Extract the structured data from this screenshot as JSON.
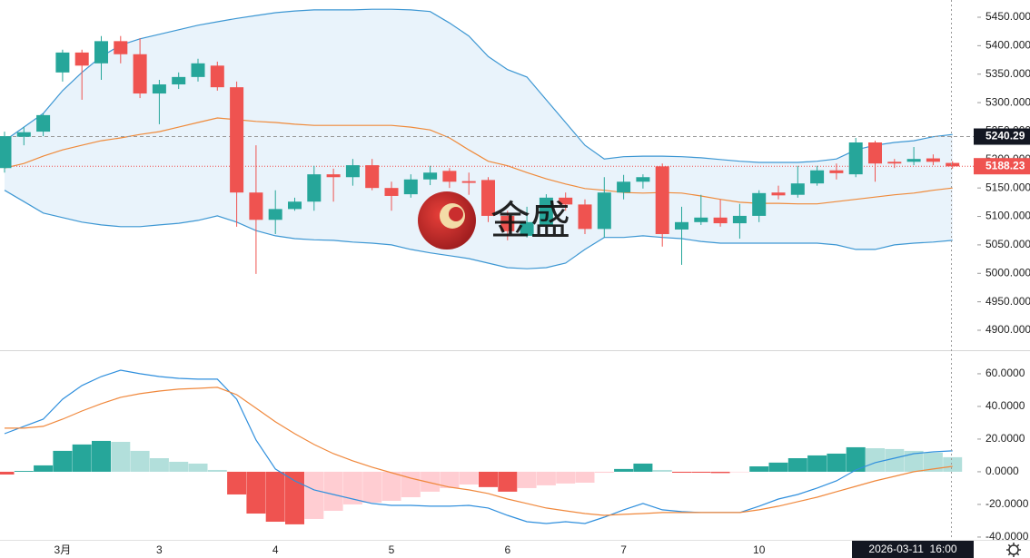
{
  "watermark": "金盛",
  "cursor_time": "2026-03-11  16:00",
  "chart_data": [
    {
      "type": "candlestick",
      "up_color": "#26a69a",
      "down_color": "#ef5350",
      "open": [
        5185,
        5240,
        5249,
        5353,
        5388,
        5369,
        5408,
        5385,
        5316,
        5332,
        5345,
        5365,
        5327,
        5142,
        5094,
        5113,
        5126,
        5174,
        5169,
        5190,
        5150,
        5139,
        5165,
        5180,
        5162,
        5164,
        5101,
        5066,
        5085,
        5133,
        5121,
        5078,
        5142,
        5161,
        5188,
        5077,
        5090,
        5098,
        5088,
        5101,
        5142,
        5138,
        5158,
        5181,
        5174,
        5230,
        5196,
        5196,
        5202,
        5194
      ],
      "high": [
        5249,
        5257,
        5281,
        5393,
        5393,
        5417,
        5417,
        5413,
        5340,
        5353,
        5377,
        5372,
        5337,
        5225,
        5146,
        5133,
        5189,
        5184,
        5201,
        5201,
        5161,
        5174,
        5189,
        5185,
        5177,
        5169,
        5110,
        5117,
        5139,
        5142,
        5130,
        5169,
        5173,
        5174,
        5193,
        5117,
        5138,
        5130,
        5122,
        5146,
        5154,
        5189,
        5189,
        5193,
        5238,
        5233,
        5201,
        5222,
        5209,
        5197
      ],
      "low": [
        5177,
        5225,
        5241,
        5337,
        5305,
        5340,
        5369,
        5308,
        5262,
        5324,
        5337,
        5321,
        5082,
        4999,
        5069,
        5110,
        5110,
        5126,
        5154,
        5146,
        5110,
        5133,
        5155,
        5150,
        5138,
        5090,
        5058,
        5063,
        5079,
        5110,
        5069,
        5063,
        5130,
        5149,
        5047,
        5015,
        5085,
        5082,
        5061,
        5090,
        5130,
        5133,
        5154,
        5165,
        5169,
        5161,
        5185,
        5190,
        5190,
        5184
      ],
      "close": [
        5241,
        5248,
        5278,
        5388,
        5365,
        5408,
        5385,
        5316,
        5332,
        5345,
        5369,
        5327,
        5142,
        5094,
        5113,
        5126,
        5174,
        5169,
        5190,
        5150,
        5136,
        5165,
        5177,
        5161,
        5159,
        5101,
        5074,
        5090,
        5133,
        5121,
        5078,
        5142,
        5161,
        5169,
        5069,
        5090,
        5098,
        5088,
        5101,
        5141,
        5137,
        5158,
        5181,
        5176,
        5230,
        5193,
        5193,
        5201,
        5196,
        5188
      ],
      "band_fill": "#e9f3fb",
      "lines": [
        {
          "color": "#3d97d3",
          "values": [
            5233,
            5257,
            5281,
            5321,
            5353,
            5381,
            5401,
            5412,
            5420,
            5428,
            5436,
            5442,
            5448,
            5453,
            5458,
            5461,
            5463,
            5463,
            5463,
            5464,
            5464,
            5463,
            5460,
            5440,
            5417,
            5381,
            5358,
            5345,
            5305,
            5265,
            5225,
            5201,
            5205,
            5206,
            5206,
            5205,
            5203,
            5200,
            5197,
            5195,
            5195,
            5195,
            5197,
            5201,
            5217,
            5225,
            5230,
            5233,
            5240,
            5244
          ]
        },
        {
          "color": "#ef8a3a",
          "values": [
            5185,
            5193,
            5206,
            5217,
            5225,
            5233,
            5238,
            5244,
            5249,
            5257,
            5265,
            5273,
            5270,
            5267,
            5265,
            5262,
            5260,
            5260,
            5260,
            5260,
            5260,
            5257,
            5252,
            5238,
            5217,
            5197,
            5189,
            5177,
            5166,
            5157,
            5149,
            5146,
            5142,
            5141,
            5142,
            5141,
            5136,
            5130,
            5125,
            5123,
            5123,
            5122,
            5122,
            5126,
            5130,
            5134,
            5138,
            5141,
            5146,
            5150
          ]
        },
        {
          "color": "#3d97d3",
          "values": [
            5146,
            5126,
            5106,
            5098,
            5090,
            5085,
            5082,
            5082,
            5085,
            5088,
            5093,
            5101,
            5090,
            5075,
            5066,
            5061,
            5059,
            5058,
            5055,
            5053,
            5050,
            5042,
            5036,
            5031,
            5026,
            5018,
            5010,
            5008,
            5010,
            5018,
            5042,
            5063,
            5063,
            5066,
            5063,
            5061,
            5056,
            5053,
            5053,
            5053,
            5053,
            5053,
            5053,
            5050,
            5042,
            5042,
            5050,
            5053,
            5055,
            5058
          ]
        }
      ],
      "price_markers": [
        {
          "value": 5240.29,
          "color": "#131722",
          "line_color": "#9a9a9a"
        },
        {
          "value": 5188.23,
          "color": "#ef5350",
          "line_color": "#ef5350"
        }
      ],
      "ylim": [
        4866.5,
        5480.3
      ],
      "yticks": [
        {
          "value": 5450,
          "label": "5450.000"
        },
        {
          "value": 5400,
          "label": "5400.000"
        },
        {
          "value": 5350,
          "label": "5350.000"
        },
        {
          "value": 5300,
          "label": "5300.000"
        },
        {
          "value": 5250,
          "label": "5250.000"
        },
        {
          "value": 5200,
          "label": "5200.000"
        },
        {
          "value": 5150,
          "label": "5150.000"
        },
        {
          "value": 5100,
          "label": "5100.000"
        },
        {
          "value": 5050,
          "label": "5050.000"
        },
        {
          "value": 5000,
          "label": "5000.000"
        },
        {
          "value": 4950,
          "label": "4950.000"
        },
        {
          "value": 4900,
          "label": "4900.000"
        }
      ]
    },
    {
      "type": "macd",
      "categories": [
        null,
        null,
        null,
        "3月",
        null,
        null,
        null,
        null,
        "3",
        null,
        null,
        null,
        null,
        null,
        "4",
        null,
        null,
        null,
        null,
        null,
        "5",
        null,
        null,
        null,
        null,
        null,
        "6",
        null,
        null,
        null,
        null,
        null,
        "7",
        null,
        null,
        null,
        null,
        null,
        null,
        "10",
        null,
        null,
        null,
        null,
        null,
        null,
        null,
        null,
        null,
        null
      ],
      "histogram": [
        -1.7,
        0.5,
        3.9,
        12.8,
        16.7,
        18.9,
        18.3,
        12.8,
        8.3,
        6.1,
        5,
        1.1,
        -13.9,
        -25.6,
        -30.6,
        -32.2,
        -28.9,
        -23.9,
        -20,
        -18.9,
        -17.8,
        -15.6,
        -12.2,
        -10,
        -7.8,
        -9.4,
        -12.2,
        -10,
        -8.3,
        -7.2,
        -6.7,
        -0.6,
        1.7,
        5,
        1.1,
        -0.6,
        -0.6,
        -0.8,
        -0.3,
        3.3,
        5.6,
        8.3,
        10,
        11.1,
        15,
        14.4,
        13.9,
        12.8,
        11.7,
        8.9
      ],
      "palette": {
        "pos_up": "#26a69a",
        "pos_down": "#b2dfdb",
        "neg_down": "#ef5350",
        "neg_up": "#ffcdd2"
      },
      "lines": [
        {
          "color": "#2f8fdd",
          "values": [
            23.3,
            27.8,
            32.2,
            44.4,
            52.8,
            58.3,
            62.2,
            60,
            58.3,
            57.2,
            56.7,
            56.7,
            44.4,
            19.4,
            1.7,
            -5.6,
            -11.1,
            -13.9,
            -16.7,
            -19.4,
            -20.6,
            -20.6,
            -21.1,
            -21.1,
            -20.6,
            -22.2,
            -26.7,
            -30.6,
            -31.7,
            -30.6,
            -31.7,
            -27.8,
            -23.3,
            -19.4,
            -23.3,
            -24.4,
            -25,
            -25,
            -25,
            -21.1,
            -16.7,
            -13.9,
            -10,
            -5.6,
            1.1,
            5.6,
            8.3,
            11.1,
            12.2,
            12.8
          ]
        },
        {
          "color": "#f0883c",
          "values": [
            26.7,
            26.7,
            27.8,
            32.2,
            37.2,
            41.7,
            45.6,
            47.8,
            49.4,
            50.6,
            51.1,
            51.7,
            47.2,
            38.9,
            30.6,
            23.3,
            16.7,
            11.1,
            6.7,
            2.8,
            -0.6,
            -3.9,
            -6.7,
            -9.4,
            -11.1,
            -13.3,
            -16.7,
            -19.4,
            -22.2,
            -23.9,
            -25.6,
            -26.7,
            -26.1,
            -25.6,
            -25,
            -25,
            -25,
            -25,
            -25,
            -23.3,
            -21.1,
            -18.3,
            -15.6,
            -12.2,
            -8.9,
            -5.6,
            -2.8,
            0,
            1.7,
            3.3
          ]
        }
      ],
      "ylim": [
        -41.7,
        73.3
      ],
      "yticks": [
        {
          "value": 60,
          "label": "60.0000"
        },
        {
          "value": 40,
          "label": "40.0000"
        },
        {
          "value": 20,
          "label": "20.0000"
        },
        {
          "value": 0,
          "label": "0.0000"
        },
        {
          "value": -20,
          "label": "-20.0000"
        },
        {
          "value": -40,
          "label": "-40.0000"
        }
      ]
    }
  ]
}
